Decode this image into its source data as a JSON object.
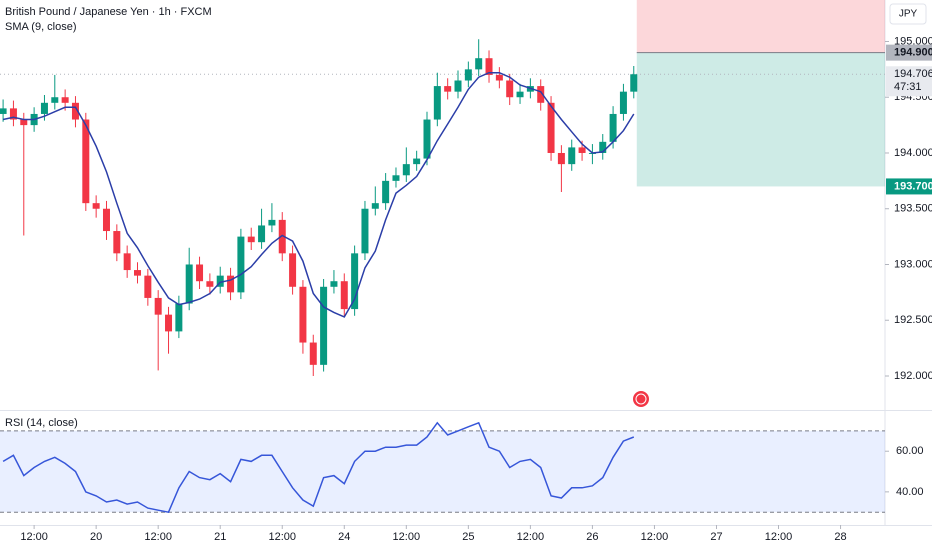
{
  "chart_data": {
    "type": "candlestick",
    "title": "British Pound / Japanese Yen · 1h · FXCM",
    "currency": "JPY",
    "x": [
      0,
      2,
      4,
      6,
      8,
      10,
      12,
      14,
      16,
      18,
      20,
      22,
      24,
      26,
      28,
      30,
      32,
      34,
      36,
      38,
      40,
      42,
      44,
      46,
      48,
      50,
      52,
      54,
      56,
      58,
      60,
      62,
      64,
      66,
      68,
      70,
      72,
      74,
      76,
      78,
      80,
      82,
      84,
      86,
      88,
      90,
      92,
      94,
      96,
      98,
      100,
      102,
      104,
      106,
      108,
      110,
      112,
      114,
      116,
      118,
      120,
      122
    ],
    "candles": [
      [
        194.35,
        194.48,
        194.28,
        194.4
      ],
      [
        194.4,
        194.47,
        194.24,
        194.3
      ],
      [
        194.3,
        194.36,
        193.26,
        194.25
      ],
      [
        194.25,
        194.41,
        194.19,
        194.35
      ],
      [
        194.35,
        194.52,
        194.29,
        194.45
      ],
      [
        194.45,
        194.7,
        194.39,
        194.5
      ],
      [
        194.5,
        194.57,
        194.38,
        194.45
      ],
      [
        194.45,
        194.51,
        194.23,
        194.3
      ],
      [
        194.3,
        194.36,
        193.48,
        193.55
      ],
      [
        193.55,
        193.62,
        193.42,
        193.5
      ],
      [
        193.5,
        193.57,
        193.22,
        193.3
      ],
      [
        193.3,
        193.36,
        193.03,
        193.1
      ],
      [
        193.1,
        193.17,
        192.88,
        192.95
      ],
      [
        192.95,
        193.02,
        192.83,
        192.9
      ],
      [
        192.9,
        192.96,
        192.63,
        192.7
      ],
      [
        192.7,
        192.77,
        192.05,
        192.55
      ],
      [
        192.55,
        192.62,
        192.2,
        192.4
      ],
      [
        192.4,
        192.72,
        192.34,
        192.65
      ],
      [
        192.65,
        193.15,
        192.59,
        193.0
      ],
      [
        193.0,
        193.07,
        192.78,
        192.85
      ],
      [
        192.85,
        192.92,
        192.73,
        192.8
      ],
      [
        192.8,
        192.98,
        192.74,
        192.9
      ],
      [
        192.9,
        192.97,
        192.68,
        192.75
      ],
      [
        192.75,
        193.32,
        192.69,
        193.25
      ],
      [
        193.25,
        193.33,
        193.13,
        193.2
      ],
      [
        193.2,
        193.5,
        193.14,
        193.35
      ],
      [
        193.35,
        193.55,
        193.29,
        193.4
      ],
      [
        193.4,
        193.47,
        193.03,
        193.1
      ],
      [
        193.1,
        193.17,
        192.73,
        192.8
      ],
      [
        192.8,
        192.86,
        192.2,
        192.3
      ],
      [
        192.3,
        192.37,
        192.0,
        192.1
      ],
      [
        192.1,
        192.87,
        192.04,
        192.8
      ],
      [
        192.8,
        192.95,
        192.74,
        192.85
      ],
      [
        192.85,
        192.92,
        192.53,
        192.6
      ],
      [
        192.6,
        193.17,
        192.54,
        193.1
      ],
      [
        193.1,
        193.57,
        193.04,
        193.5
      ],
      [
        193.5,
        193.7,
        193.44,
        193.55
      ],
      [
        193.55,
        193.82,
        193.49,
        193.75
      ],
      [
        193.75,
        193.87,
        193.69,
        193.8
      ],
      [
        193.8,
        194.05,
        193.74,
        193.9
      ],
      [
        193.9,
        194.02,
        193.84,
        193.95
      ],
      [
        193.95,
        194.37,
        193.89,
        194.3
      ],
      [
        194.3,
        194.72,
        194.24,
        194.6
      ],
      [
        194.6,
        194.67,
        194.48,
        194.55
      ],
      [
        194.55,
        194.74,
        194.49,
        194.65
      ],
      [
        194.65,
        194.82,
        194.59,
        194.75
      ],
      [
        194.75,
        195.02,
        194.69,
        194.85
      ],
      [
        194.85,
        194.92,
        194.63,
        194.7
      ],
      [
        194.7,
        194.77,
        194.58,
        194.65
      ],
      [
        194.65,
        194.71,
        194.43,
        194.5
      ],
      [
        194.5,
        194.62,
        194.44,
        194.55
      ],
      [
        194.55,
        194.67,
        194.49,
        194.6
      ],
      [
        194.6,
        194.66,
        194.38,
        194.45
      ],
      [
        194.45,
        194.51,
        193.93,
        194.0
      ],
      [
        194.0,
        194.07,
        193.65,
        193.9
      ],
      [
        193.9,
        194.12,
        193.84,
        194.05
      ],
      [
        194.05,
        194.11,
        193.93,
        194.0
      ],
      [
        194.0,
        194.08,
        193.9,
        194.0
      ],
      [
        194.0,
        194.17,
        193.94,
        194.1
      ],
      [
        194.1,
        194.42,
        194.04,
        194.35
      ],
      [
        194.35,
        194.62,
        194.29,
        194.55
      ],
      [
        194.55,
        194.78,
        194.49,
        194.706
      ]
    ],
    "colors": {
      "up": "#089981",
      "down": "#f23645"
    },
    "xlim": [
      -0.6,
      170.6
    ],
    "xticks": [
      {
        "value": 6,
        "label": "12:00"
      },
      {
        "value": 18,
        "label": "20"
      },
      {
        "value": 30,
        "label": "12:00"
      },
      {
        "value": 42,
        "label": "21"
      },
      {
        "value": 54,
        "label": "12:00"
      },
      {
        "value": 66,
        "label": "24"
      },
      {
        "value": 78,
        "label": "12:00"
      },
      {
        "value": 90,
        "label": "25"
      },
      {
        "value": 102,
        "label": "12:00"
      },
      {
        "value": 114,
        "label": "26"
      },
      {
        "value": 126,
        "label": "12:00"
      },
      {
        "value": 138,
        "label": "27"
      },
      {
        "value": 150,
        "label": "12:00"
      },
      {
        "value": 162,
        "label": "28"
      }
    ],
    "ylim": [
      191.695,
      195.372
    ],
    "yticks": [
      {
        "value": 195,
        "label": "195.000"
      },
      {
        "value": 194.5,
        "label": "194.500"
      },
      {
        "value": 194,
        "label": "194.000"
      },
      {
        "value": 193.5,
        "label": "193.500"
      },
      {
        "value": 193,
        "label": "193.000"
      },
      {
        "value": 192.5,
        "label": "192.500"
      },
      {
        "value": 192,
        "label": "192.000"
      }
    ],
    "overlays": [
      {
        "name": "SMA (9, close)",
        "color": "#2b3ea8",
        "values": [
          194.3,
          194.32,
          194.3,
          194.3,
          194.33,
          194.37,
          194.41,
          194.41,
          194.25,
          194.06,
          193.83,
          193.55,
          193.28,
          193.15,
          192.99,
          192.84,
          192.7,
          192.64,
          192.66,
          192.69,
          192.74,
          192.84,
          192.86,
          192.91,
          192.98,
          193.09,
          193.19,
          193.26,
          193.21,
          193.03,
          192.74,
          192.62,
          192.57,
          192.53,
          192.69,
          192.97,
          193.12,
          193.4,
          193.64,
          193.71,
          193.79,
          193.94,
          194.11,
          194.26,
          194.41,
          194.57,
          194.68,
          194.72,
          194.72,
          194.68,
          194.61,
          194.58,
          194.55,
          194.42,
          194.3,
          194.19,
          194.08,
          194.0,
          194.01,
          194.1,
          194.2,
          194.35
        ]
      }
    ],
    "last_price": {
      "value": 194.706,
      "countdown": "47:31"
    },
    "position": {
      "entry": {
        "value": 194.9,
        "label": "194.900"
      },
      "target": {
        "value": 193.7,
        "label": "193.700"
      }
    },
    "rsi": {
      "name": "RSI (14, close)",
      "color": "#3656d9",
      "values": [
        55,
        58,
        48,
        52,
        55,
        57,
        54,
        50,
        40,
        38,
        35,
        36,
        34,
        35,
        32,
        31,
        30,
        42,
        50,
        47,
        46,
        49,
        45,
        56,
        55,
        58,
        58,
        50,
        42,
        36,
        33,
        47,
        48,
        44,
        55,
        60,
        60,
        62,
        62,
        63,
        63,
        67,
        74,
        68,
        70,
        72,
        74,
        62,
        60,
        52,
        55,
        56,
        52,
        38,
        37,
        42,
        42,
        43,
        47,
        57,
        65,
        67
      ],
      "ylim": [
        23.7,
        79.3
      ],
      "yticks": [
        {
          "value": 60,
          "label": "60.00"
        },
        {
          "value": 40,
          "label": "40.00"
        }
      ],
      "bands": [
        30,
        70
      ]
    }
  }
}
